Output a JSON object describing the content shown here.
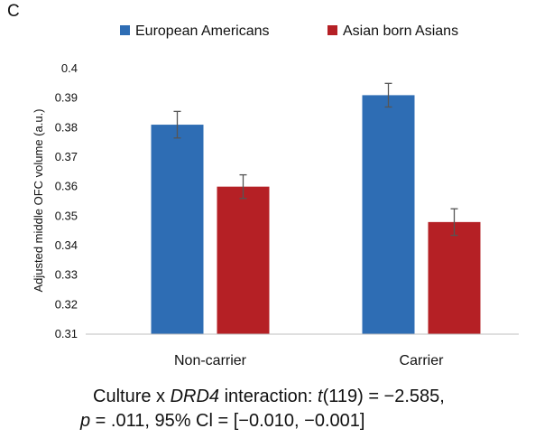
{
  "panel_label": "C",
  "colors": {
    "european": "#2e6db4",
    "asian": "#b52025",
    "error_bar": "#555555",
    "axis": "#bfbfbf"
  },
  "chart_data": {
    "type": "bar",
    "categories": [
      "Non-carrier",
      "Carrier"
    ],
    "series": [
      {
        "name": "European Americans",
        "values": [
          0.381,
          0.391
        ],
        "errors": [
          0.0045,
          0.004
        ]
      },
      {
        "name": "Asian born Asians",
        "values": [
          0.36,
          0.348
        ],
        "errors": [
          0.004,
          0.0045
        ]
      }
    ],
    "ylabel": "Adjusted middle OFC volume (a.u.)",
    "xlabel": "",
    "ylim": [
      0.31,
      0.4
    ],
    "yticks": [
      "0.31",
      "0.32",
      "0.33",
      "0.34",
      "0.35",
      "0.36",
      "0.37",
      "0.38",
      "0.39",
      "0.4"
    ],
    "legend_position": "top",
    "grid": false
  },
  "stats": {
    "line1_prefix": "Culture x ",
    "line1_gene": "DRD4",
    "line1_mid": " interaction: ",
    "line1_t": "t",
    "line1_rest": "(119) = −2.585,",
    "line2_p": "p",
    "line2_rest": " = .011, 95% Cl = [−0.010, −0.001]"
  }
}
